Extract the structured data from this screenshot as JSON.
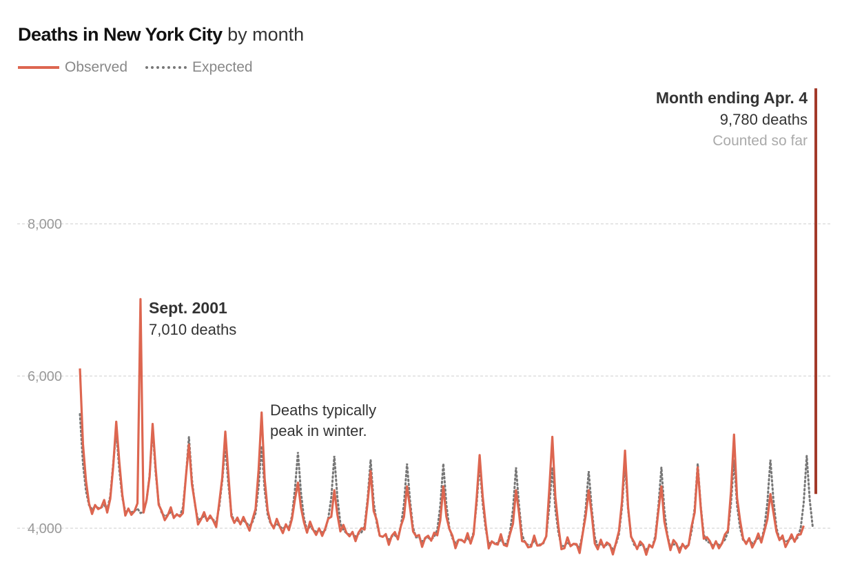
{
  "title": {
    "strong": "Deaths in New York City",
    "light": "by month"
  },
  "legend": {
    "observed": "Observed",
    "expected": "Expected"
  },
  "colors": {
    "observed": "#dd6650",
    "expected": "#777777",
    "latest": "#a33a29",
    "grid": "#cccccc"
  },
  "annotations": {
    "sept2001_title": "Sept. 2001",
    "sept2001_value": "7,010 deaths",
    "winter_line1": "Deaths typically",
    "winter_line2": "peak in winter.",
    "latest_title": "Month ending Apr. 4",
    "latest_value": "9,780 deaths",
    "latest_note": "Counted so far"
  },
  "chart_data": {
    "type": "line",
    "title": "Deaths in New York City by month",
    "xlabel": "",
    "ylabel": "",
    "x_range": [
      "2000-01",
      "2020-04"
    ],
    "ylim": [
      3700,
      9900
    ],
    "yticks": [
      4000,
      6000,
      8000
    ],
    "ytick_labels": [
      "4,000",
      "6,000",
      "8,000"
    ],
    "grid": true,
    "legend_position": "top-left",
    "series": [
      {
        "name": "Observed",
        "annual_peaks": [
          {
            "x": "2000-01",
            "y": 6100
          },
          {
            "x": "2001-01",
            "y": 5400
          },
          {
            "x": "2001-09",
            "y": 7010
          },
          {
            "x": "2002-01",
            "y": 5370
          },
          {
            "x": "2003-01",
            "y": 5100
          },
          {
            "x": "2004-01",
            "y": 5270
          },
          {
            "x": "2005-01",
            "y": 5520
          },
          {
            "x": "2006-01",
            "y": 4600
          },
          {
            "x": "2007-01",
            "y": 4500
          },
          {
            "x": "2008-01",
            "y": 4750
          },
          {
            "x": "2009-01",
            "y": 4550
          },
          {
            "x": "2010-01",
            "y": 4550
          },
          {
            "x": "2011-01",
            "y": 4960
          },
          {
            "x": "2012-01",
            "y": 4500
          },
          {
            "x": "2013-01",
            "y": 5200
          },
          {
            "x": "2014-01",
            "y": 4500
          },
          {
            "x": "2015-01",
            "y": 5020
          },
          {
            "x": "2016-01",
            "y": 4550
          },
          {
            "x": "2017-01",
            "y": 4800
          },
          {
            "x": "2018-01",
            "y": 5230
          },
          {
            "x": "2019-01",
            "y": 4450
          },
          {
            "x": "2020-04",
            "y": 9780
          }
        ]
      },
      {
        "name": "Expected",
        "annual_peaks": [
          {
            "x": "2000-01",
            "y": 5500
          },
          {
            "x": "2002-01",
            "y": 5300
          },
          {
            "x": "2003-01",
            "y": 5200
          },
          {
            "x": "2005-01",
            "y": 5080
          },
          {
            "x": "2006-01",
            "y": 5000
          },
          {
            "x": "2007-01",
            "y": 4950
          },
          {
            "x": "2008-01",
            "y": 4900
          },
          {
            "x": "2009-01",
            "y": 4850
          },
          {
            "x": "2010-01",
            "y": 4850
          },
          {
            "x": "2011-01",
            "y": 4850
          },
          {
            "x": "2012-01",
            "y": 4800
          },
          {
            "x": "2013-01",
            "y": 4800
          },
          {
            "x": "2014-01",
            "y": 4750
          },
          {
            "x": "2015-01",
            "y": 4850
          },
          {
            "x": "2016-01",
            "y": 4800
          },
          {
            "x": "2017-01",
            "y": 4850
          },
          {
            "x": "2018-01",
            "y": 4900
          },
          {
            "x": "2019-01",
            "y": 4900
          },
          {
            "x": "2020-01",
            "y": 4950
          }
        ]
      }
    ],
    "seasonal_trough": [
      {
        "year": 2000,
        "y": 4300
      },
      {
        "year": 2004,
        "y": 4100
      },
      {
        "year": 2008,
        "y": 3900
      },
      {
        "year": 2012,
        "y": 3800
      },
      {
        "year": 2016,
        "y": 3750
      },
      {
        "year": 2019,
        "y": 3850
      }
    ]
  }
}
